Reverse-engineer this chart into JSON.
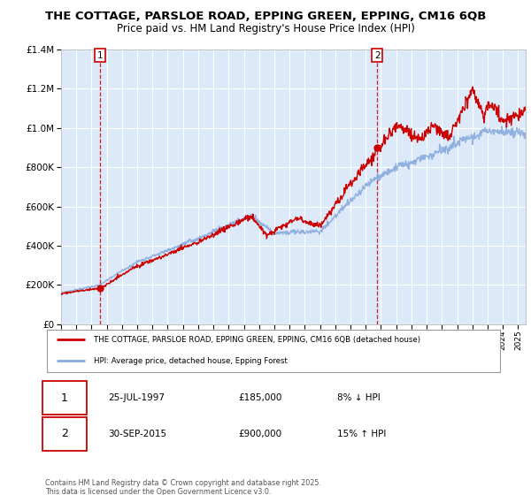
{
  "title": "THE COTTAGE, PARSLOE ROAD, EPPING GREEN, EPPING, CM16 6QB",
  "subtitle": "Price paid vs. HM Land Registry's House Price Index (HPI)",
  "background_color": "#dce9f8",
  "plot_bg_color": "#dce9f8",
  "outer_bg_color": "#ffffff",
  "legend_label_red": "THE COTTAGE, PARSLOE ROAD, EPPING GREEN, EPPING, CM16 6QB (detached house)",
  "legend_label_blue": "HPI: Average price, detached house, Epping Forest",
  "annotation1_label": "1",
  "annotation1_date": "25-JUL-1997",
  "annotation1_price": "£185,000",
  "annotation1_pct": "8% ↓ HPI",
  "annotation2_label": "2",
  "annotation2_date": "30-SEP-2015",
  "annotation2_price": "£900,000",
  "annotation2_pct": "15% ↑ HPI",
  "footer": "Contains HM Land Registry data © Crown copyright and database right 2025.\nThis data is licensed under the Open Government Licence v3.0.",
  "ylim": [
    0,
    1400000
  ],
  "red_color": "#cc0000",
  "blue_color": "#88aadd",
  "dashed_color": "#cc0000",
  "sale1_x": 1997.57,
  "sale1_y": 185000,
  "sale2_x": 2015.75,
  "sale2_y": 900000,
  "xmin": 1995,
  "xmax": 2025.5
}
